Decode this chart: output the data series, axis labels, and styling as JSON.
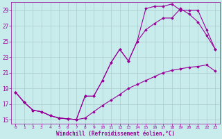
{
  "xlabel": "Windchill (Refroidissement éolien,°C)",
  "bg_color": "#c8ecec",
  "line_color": "#990099",
  "grid_color": "#aacccc",
  "xlim": [
    -0.5,
    23.5
  ],
  "ylim": [
    14.5,
    30.0
  ],
  "yticks": [
    15,
    17,
    19,
    21,
    23,
    25,
    27,
    29
  ],
  "xticks": [
    0,
    1,
    2,
    3,
    4,
    5,
    6,
    7,
    8,
    9,
    10,
    11,
    12,
    13,
    14,
    15,
    16,
    17,
    18,
    19,
    20,
    21,
    22,
    23
  ],
  "series1_x": [
    0,
    1,
    2,
    3,
    4,
    5,
    6,
    7,
    8,
    9,
    10,
    11,
    12,
    13,
    14,
    15,
    16,
    17,
    18,
    19,
    20,
    21,
    22,
    23
  ],
  "series1_y": [
    18.5,
    17.2,
    16.2,
    16.0,
    15.5,
    15.2,
    15.1,
    15.0,
    15.2,
    16.0,
    16.8,
    17.5,
    18.2,
    19.0,
    19.5,
    20.0,
    20.5,
    21.0,
    21.3,
    21.5,
    21.7,
    21.8,
    22.0,
    21.2
  ],
  "series2_x": [
    0,
    1,
    2,
    3,
    4,
    5,
    6,
    7,
    8,
    9,
    10,
    11,
    12,
    13,
    14,
    15,
    16,
    17,
    18,
    19,
    20,
    21,
    22,
    23
  ],
  "series2_y": [
    18.5,
    17.2,
    16.2,
    16.0,
    15.5,
    15.2,
    15.1,
    15.0,
    18.0,
    18.0,
    20.0,
    22.3,
    24.0,
    22.5,
    25.0,
    26.5,
    27.3,
    28.0,
    28.0,
    29.2,
    28.5,
    27.5,
    25.8,
    24.0
  ],
  "series3_x": [
    0,
    1,
    2,
    3,
    4,
    5,
    6,
    7,
    8,
    9,
    10,
    11,
    12,
    13,
    14,
    15,
    16,
    17,
    18,
    19,
    20,
    21,
    22,
    23
  ],
  "series3_y": [
    18.5,
    17.2,
    16.2,
    16.0,
    15.5,
    15.2,
    15.1,
    15.0,
    18.0,
    18.0,
    20.0,
    22.3,
    24.0,
    22.5,
    25.0,
    29.2,
    29.5,
    29.5,
    29.8,
    29.0,
    29.0,
    29.0,
    26.5,
    24.0
  ]
}
